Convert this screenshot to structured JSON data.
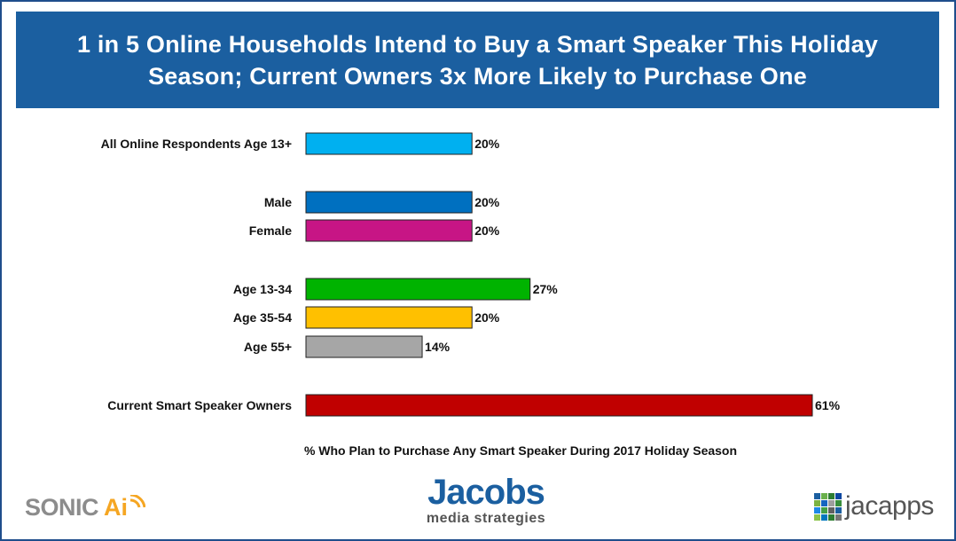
{
  "title": "1 in 5 Online Households Intend to Buy a Smart Speaker This Holiday Season; Current Owners 3x More Likely to Purchase One",
  "chart_data": {
    "type": "bar",
    "orientation": "horizontal",
    "title": "1 in 5 Online Households Intend to Buy a Smart Speaker This Holiday Season; Current Owners 3x More Likely to Purchase One",
    "xlabel": "% Who Plan to Purchase Any Smart Speaker During 2017 Holiday Season",
    "ylabel": "",
    "unit": "%",
    "xlim": [
      0,
      61
    ],
    "grid": false,
    "legend": "none",
    "categories": [
      "All Online Respondents Age 13+",
      "Male",
      "Female",
      "Age 13-34",
      "Age 35-54",
      "Age 55+",
      "Current Smart Speaker Owners"
    ],
    "values": [
      20,
      20,
      20,
      27,
      20,
      14,
      61
    ],
    "value_labels": [
      "20%",
      "20%",
      "20%",
      "27%",
      "20%",
      "14%",
      "61%"
    ],
    "colors": [
      "#00b0f0",
      "#0070c0",
      "#c71585",
      "#00b300",
      "#ffc000",
      "#a6a6a6",
      "#c00000"
    ],
    "groups": [
      [
        0
      ],
      [
        1,
        2
      ],
      [
        3,
        4,
        5
      ],
      [
        6
      ]
    ]
  },
  "logos": {
    "sonic_text": "SONIC",
    "sonic_ai": "Ai",
    "jacobs_word": "Jacobs",
    "jacobs_sub": "media strategies",
    "jacapps_word": "jacapps"
  },
  "colors": {
    "title_bg": "#1b5fa0",
    "frame": "#1f4e8c",
    "jacobs_blue": "#1b5fa0",
    "sonic_gray": "#8c8c8c",
    "sonic_orange": "#f5a623",
    "jacapps_grid": [
      "#1b5fa0",
      "#6ab04c",
      "#2e7d32",
      "#0d47a1",
      "#7cb342",
      "#1565c0",
      "#9e9e9e",
      "#388e3c",
      "#1e88e5",
      "#43a047",
      "#616161",
      "#1b5fa0",
      "#8bc34a",
      "#0277bd",
      "#2e7d32",
      "#757575"
    ]
  }
}
